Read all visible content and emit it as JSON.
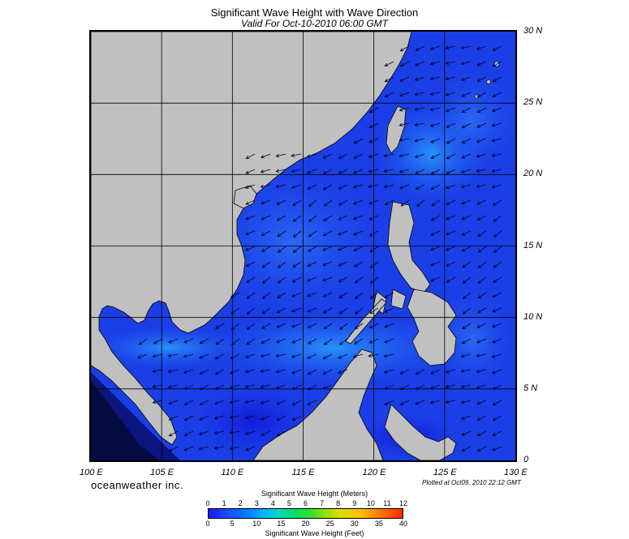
{
  "title": "Significant Wave Height with Wave Direction",
  "subtitle": "Valid For Oct-10-2010 06:00 GMT",
  "longitude_labels": [
    "100 E",
    "105 E",
    "110 E",
    "115 E",
    "120 E",
    "125 E",
    "130 E"
  ],
  "latitude_labels": [
    "30 N",
    "25 N",
    "20 N",
    "15 N",
    "10 N",
    "5 N",
    "0"
  ],
  "brand": "oceanweather inc.",
  "plotted_at": "Plotted at Oct09, 2010 22:12 GMT",
  "scale": {
    "meters_title": "Significant Wave Height (Meters)",
    "meters_ticks": [
      "0",
      "1",
      "2",
      "3",
      "4",
      "5",
      "6",
      "7",
      "8",
      "9",
      "10",
      "11",
      "12"
    ],
    "feet_ticks": [
      "0",
      "5",
      "10",
      "15",
      "20",
      "25",
      "30",
      "35",
      "40"
    ],
    "feet_title": "Significant Wave Height (Feet)"
  },
  "colors": {
    "land": "#c0c0c0",
    "sea_low": "#1a2ee8",
    "sea_mid": "#1c5cf0",
    "sea_high": "#1e90f8",
    "arrow": "#000033"
  }
}
